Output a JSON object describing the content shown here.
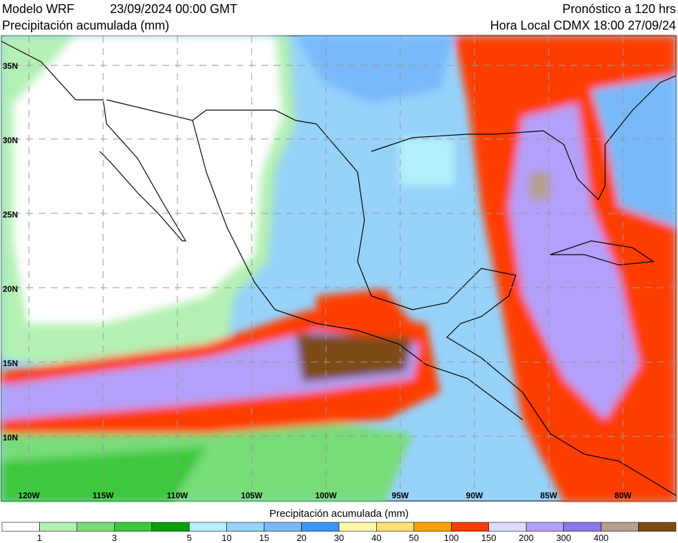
{
  "header": {
    "model": "Modelo WRF",
    "date": "23/09/2024 00:00 GMT",
    "variable": "Precipitación acumulada (mm)",
    "forecast": "Pronóstico a 120 hrs",
    "local_time": "Hora Local CDMX 18:00 27/09/24"
  },
  "map": {
    "lat_labels": [
      "35N",
      "30N",
      "25N",
      "20N",
      "15N",
      "10N"
    ],
    "lon_labels": [
      "120W",
      "115W",
      "110W",
      "105W",
      "100W",
      "95W",
      "90W",
      "85W",
      "80W"
    ]
  },
  "colorbar": {
    "title": "Precipitación acumulada (mm)",
    "labels": [
      "1",
      "3",
      "5",
      "10",
      "15",
      "20",
      "30",
      "40",
      "50",
      "100",
      "150",
      "200",
      "300",
      "400"
    ],
    "colors": [
      "#ffffff",
      "#b4f0b4",
      "#78dc78",
      "#3cc83c",
      "#0aa00a",
      "#b4f0fa",
      "#96d2fa",
      "#78b9fa",
      "#3c96f5",
      "#fffaaa",
      "#ffe178",
      "#ffa000",
      "#ff3c00",
      "#dcdcff",
      "#b4a0fa",
      "#8c78e6",
      "#b4a08c",
      "#7d4b14"
    ]
  }
}
